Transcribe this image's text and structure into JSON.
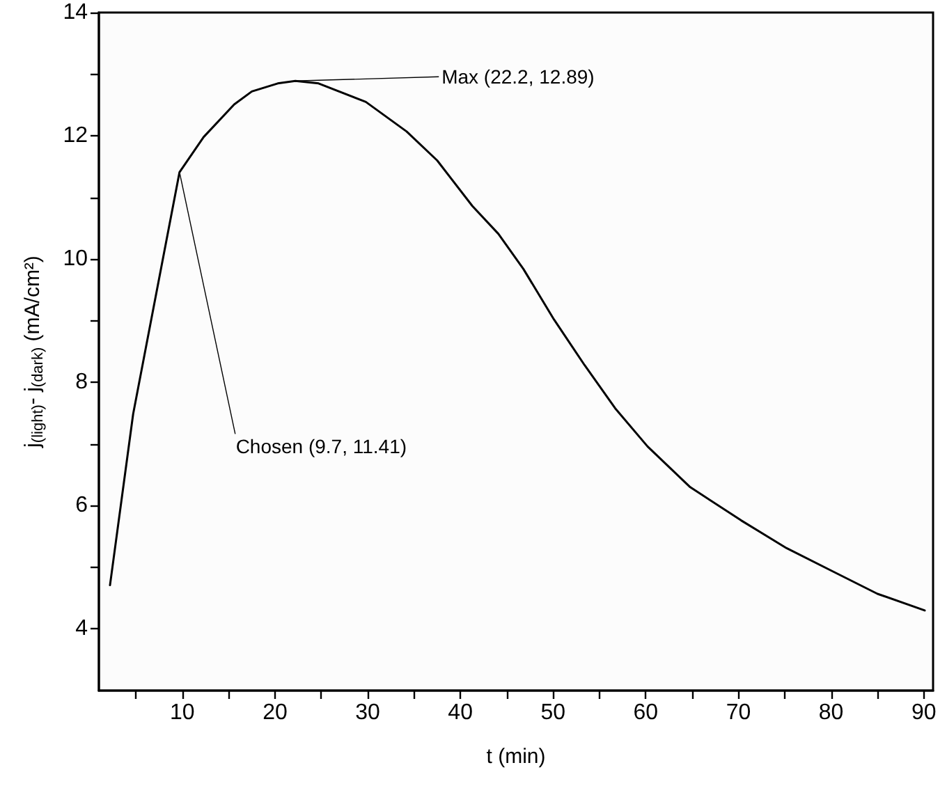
{
  "chart_data": {
    "type": "line",
    "xlabel": "t (min)",
    "ylabel": "j$_{(light)}$- j$_{(dark)}$ (mA/cm²)",
    "xlim": [
      1,
      91
    ],
    "xticks": [
      {
        "value": 5,
        "label": null
      },
      10,
      {
        "value": 15,
        "label": null
      },
      20,
      {
        "value": 25,
        "label": null
      },
      30,
      {
        "value": 35,
        "label": null
      },
      40,
      {
        "value": 45,
        "label": null
      },
      50,
      {
        "value": 55,
        "label": null
      },
      60,
      {
        "value": 65,
        "label": null
      },
      70,
      {
        "value": 75,
        "label": null
      },
      80,
      {
        "value": 85,
        "label": null
      },
      90
    ],
    "ylim": [
      3,
      14
    ],
    "yticks": [
      4,
      {
        "value": 5,
        "label": null
      },
      6,
      {
        "value": 7,
        "label": null
      },
      8,
      {
        "value": 9,
        "label": null
      },
      10,
      {
        "value": 11,
        "label": null
      },
      12,
      {
        "value": 13,
        "label": null
      },
      14
    ],
    "series": [
      {
        "color": "#000000",
        "x": [
          2.2,
          4.7,
          9.7,
          12.3,
          15.6,
          17.5,
          20.3,
          22.2,
          24.7,
          29.8,
          34.2,
          37.5,
          41.3,
          44.1,
          46.8,
          50.1,
          53.4,
          56.7,
          60.2,
          64.8,
          70.3,
          75.2,
          80.1,
          85.0,
          90.1
        ],
        "values": [
          4.71,
          7.49,
          11.41,
          11.98,
          12.51,
          12.72,
          12.85,
          12.89,
          12.85,
          12.55,
          12.07,
          11.6,
          10.86,
          10.41,
          9.84,
          9.02,
          8.28,
          7.58,
          6.96,
          6.3,
          5.76,
          5.31,
          4.94,
          4.57,
          4.3
        ]
      }
    ],
    "annotations": [
      {
        "text": "Chosen (9.7, 11.41)",
        "x": 9.7,
        "y": 11.41
      },
      {
        "text": "Max (22.2, 12.89)",
        "x": 22.2,
        "y": 12.89
      }
    ],
    "marker": "none",
    "line_style": "solid"
  }
}
